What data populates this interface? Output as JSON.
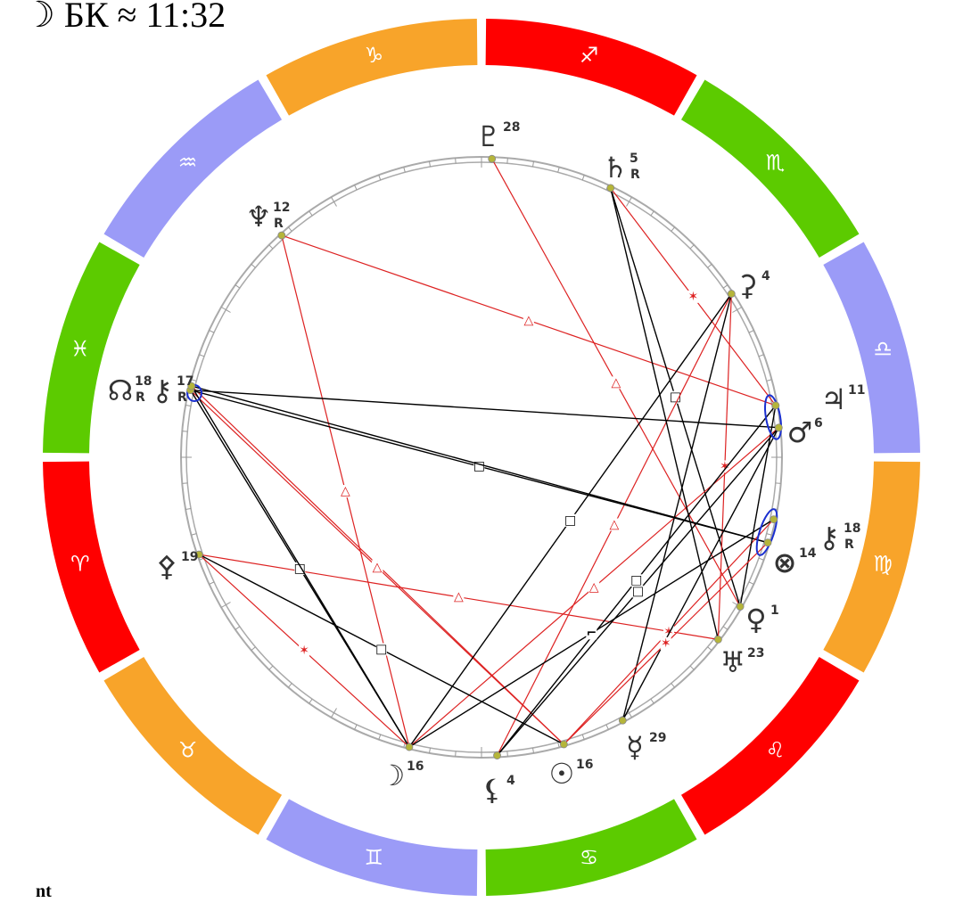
{
  "header": {
    "title": "☽ БК ≈ 11:32"
  },
  "signs": [
    "♐",
    "♏",
    "♎",
    "♍",
    "♌",
    "♋",
    "♊",
    "♉",
    "♈",
    "♓",
    "♒",
    "♑"
  ],
  "bodies": [
    {
      "glyph": "♇",
      "degree": 28
    },
    {
      "glyph": "♄",
      "degree": 5,
      "retro": "R"
    },
    {
      "glyph": "♆",
      "degree": 12,
      "retro": "R"
    },
    {
      "glyph": "⚳",
      "degree": 4
    },
    {
      "glyph": "♃",
      "degree": 11
    },
    {
      "glyph": "♂",
      "degree": 6
    },
    {
      "glyph": "⚷",
      "degree": 18,
      "retro": "R"
    },
    {
      "glyph": "⊗",
      "degree": 14
    },
    {
      "glyph": "♀",
      "degree": 1
    },
    {
      "glyph": "♅",
      "degree": 23
    },
    {
      "glyph": "☿",
      "degree": 29
    },
    {
      "glyph": "☉",
      "degree": 16
    },
    {
      "glyph": "⚸",
      "degree": 4
    },
    {
      "glyph": "☽",
      "degree": 16
    },
    {
      "glyph": "⚴",
      "degree": 19
    },
    {
      "glyph": "☊",
      "degree": 18,
      "retro": "R"
    },
    {
      "glyph": "⚷",
      "degree": 17,
      "retro": "R"
    }
  ],
  "footer": "nt"
}
